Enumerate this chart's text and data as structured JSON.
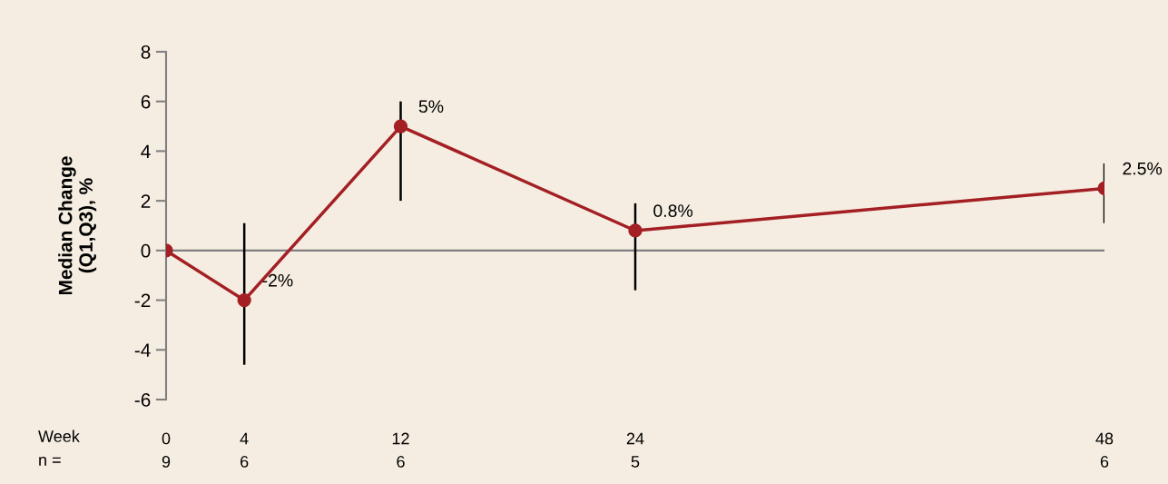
{
  "chart_data": {
    "type": "line",
    "ylabel": "Median Change\n(Q1,Q3), %",
    "x": [
      0,
      4,
      12,
      24,
      48
    ],
    "series": [
      {
        "color": "#a31f24",
        "values": [
          0,
          -2,
          5,
          0.8,
          2.5
        ],
        "errors": [
          null,
          [
            -4.6,
            1.1
          ],
          [
            2.0,
            6.0
          ],
          [
            -1.6,
            1.9
          ],
          [
            1.1,
            3.5
          ]
        ],
        "value_labels": [
          null,
          "-2%",
          "5%",
          "0.8%",
          "2.5%"
        ]
      }
    ],
    "marker": "circle",
    "line_style": "solid",
    "xlim": [
      0,
      48
    ],
    "xticks": [
      0,
      4,
      12,
      24,
      48
    ],
    "ylim": [
      -6,
      8
    ],
    "yticks": [
      -6,
      -4,
      -2,
      0,
      2,
      4,
      6,
      8
    ],
    "ref_lines": [
      {
        "axis": "y",
        "value": 0,
        "label": null,
        "color": "#808080"
      }
    ],
    "annotations": [
      "Week",
      "n =",
      "9",
      "6",
      "6",
      "5",
      "6"
    ],
    "grid": false,
    "legend": false
  }
}
